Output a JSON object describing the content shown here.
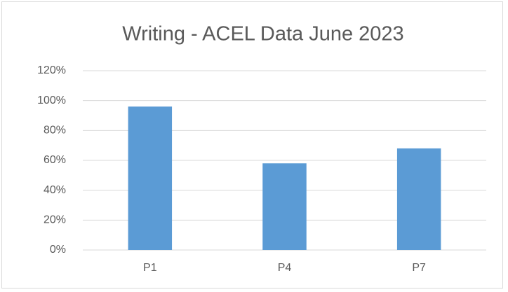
{
  "chart_data": {
    "type": "bar",
    "title": "Writing - ACEL Data June 2023",
    "categories": [
      "P1",
      "P4",
      "P7"
    ],
    "values": [
      96,
      58,
      68
    ],
    "color": "#5b9bd5",
    "ylim": [
      0,
      120
    ],
    "yticks": [
      {
        "value": 0,
        "label": "0%"
      },
      {
        "value": 20,
        "label": "20%"
      },
      {
        "value": 40,
        "label": "40%"
      },
      {
        "value": 60,
        "label": "60%"
      },
      {
        "value": 80,
        "label": "80%"
      },
      {
        "value": 100,
        "label": "100%"
      },
      {
        "value": 120,
        "label": "120%"
      }
    ],
    "grid": true
  }
}
